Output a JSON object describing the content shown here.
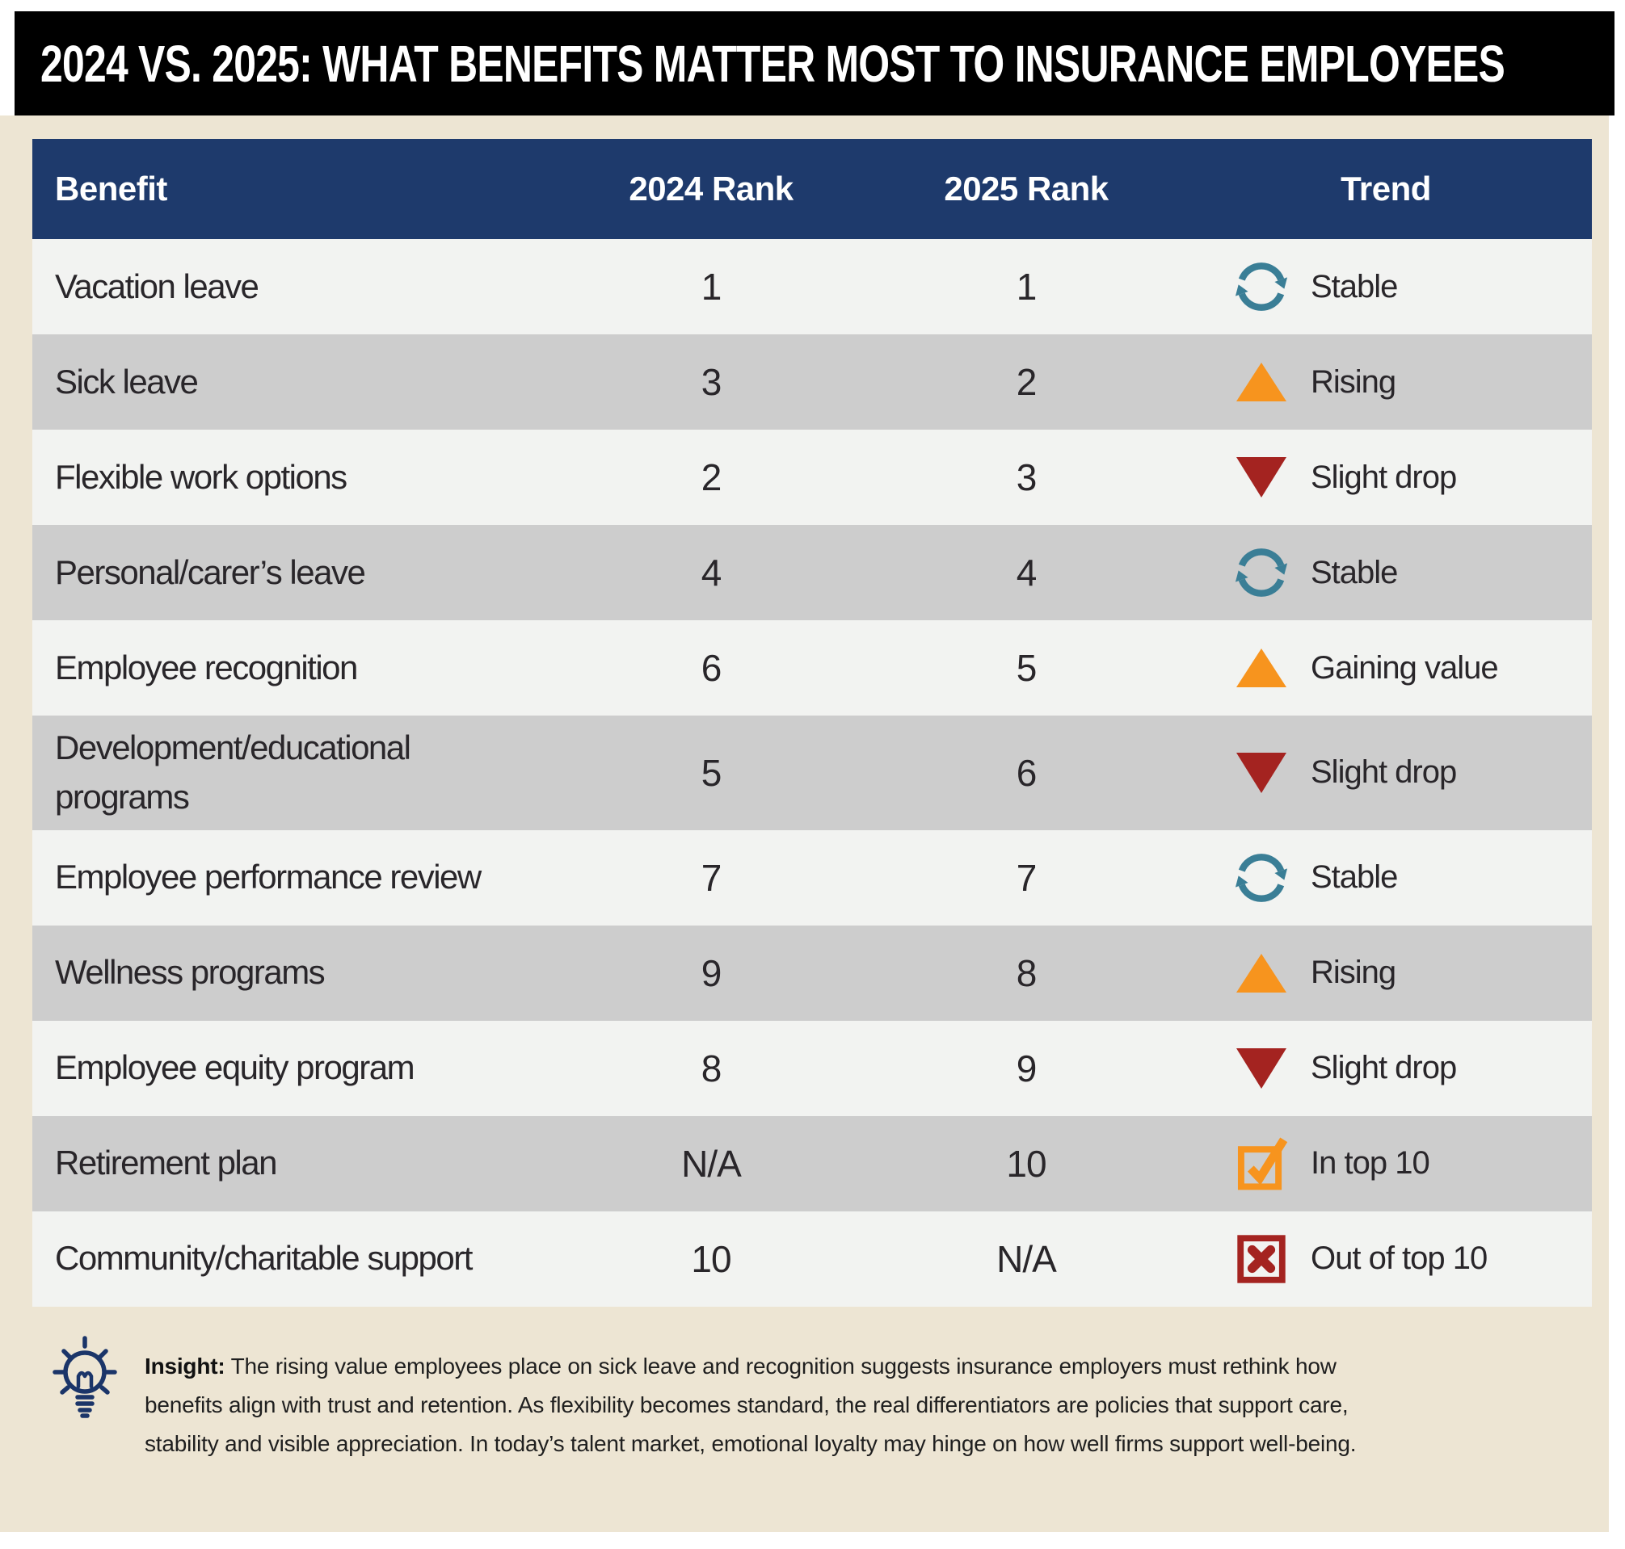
{
  "title": "2024 VS. 2025: WHAT BENEFITS MATTER MOST TO INSURANCE EMPLOYEES",
  "table": {
    "columns": [
      "Benefit",
      "2024 Rank",
      "2025 Rank",
      "Trend"
    ],
    "rows": [
      {
        "benefit": "Vacation leave",
        "rank2024": "1",
        "rank2025": "1",
        "trend": "Stable",
        "icon": "stable"
      },
      {
        "benefit": "Sick leave",
        "rank2024": "3",
        "rank2025": "2",
        "trend": "Rising",
        "icon": "up"
      },
      {
        "benefit": "Flexible work options",
        "rank2024": "2",
        "rank2025": "3",
        "trend": "Slight drop",
        "icon": "down"
      },
      {
        "benefit": "Personal/carer’s leave",
        "rank2024": "4",
        "rank2025": "4",
        "trend": "Stable",
        "icon": "stable"
      },
      {
        "benefit": "Employee recognition",
        "rank2024": "6",
        "rank2025": "5",
        "trend": "Gaining value",
        "icon": "up"
      },
      {
        "benefit": "Development/educational programs",
        "rank2024": "5",
        "rank2025": "6",
        "trend": "Slight drop",
        "icon": "down"
      },
      {
        "benefit": "Employee performance review",
        "rank2024": "7",
        "rank2025": "7",
        "trend": "Stable",
        "icon": "stable"
      },
      {
        "benefit": "Wellness programs",
        "rank2024": "9",
        "rank2025": "8",
        "trend": "Rising",
        "icon": "up"
      },
      {
        "benefit": "Employee equity program",
        "rank2024": "8",
        "rank2025": "9",
        "trend": "Slight drop",
        "icon": "down"
      },
      {
        "benefit": "Retirement plan",
        "rank2024": "N/A",
        "rank2025": "10",
        "trend": "In top 10",
        "icon": "check"
      },
      {
        "benefit": "Community/charitable support",
        "rank2024": "10",
        "rank2025": "N/A",
        "trend": "Out of top 10",
        "icon": "cross"
      }
    ]
  },
  "chart_data": {
    "type": "table",
    "title": "2024 VS. 2025: WHAT BENEFITS MATTER MOST TO INSURANCE EMPLOYEES",
    "columns": [
      "Benefit",
      "2024 Rank",
      "2025 Rank",
      "Trend"
    ],
    "series": [
      {
        "name": "Vacation leave",
        "rank_2024": 1,
        "rank_2025": 1,
        "trend": "Stable"
      },
      {
        "name": "Sick leave",
        "rank_2024": 3,
        "rank_2025": 2,
        "trend": "Rising"
      },
      {
        "name": "Flexible work options",
        "rank_2024": 2,
        "rank_2025": 3,
        "trend": "Slight drop"
      },
      {
        "name": "Personal/carer’s leave",
        "rank_2024": 4,
        "rank_2025": 4,
        "trend": "Stable"
      },
      {
        "name": "Employee recognition",
        "rank_2024": 6,
        "rank_2025": 5,
        "trend": "Gaining value"
      },
      {
        "name": "Development/educational programs",
        "rank_2024": 5,
        "rank_2025": 6,
        "trend": "Slight drop"
      },
      {
        "name": "Employee performance review",
        "rank_2024": 7,
        "rank_2025": 7,
        "trend": "Stable"
      },
      {
        "name": "Wellness programs",
        "rank_2024": 9,
        "rank_2025": 8,
        "trend": "Rising"
      },
      {
        "name": "Employee equity program",
        "rank_2024": 8,
        "rank_2025": 9,
        "trend": "Slight drop"
      },
      {
        "name": "Retirement plan",
        "rank_2024": null,
        "rank_2025": 10,
        "trend": "In top 10"
      },
      {
        "name": "Community/charitable support",
        "rank_2024": 10,
        "rank_2025": null,
        "trend": "Out of top 10"
      }
    ]
  },
  "insight": {
    "label": "Insight:",
    "text": "The rising value employees place on sick leave and recognition suggests insurance employers must rethink how benefits align with trust and retention. As flexibility becomes standard, the real differentiators are policies that support care, stability and visible appreciation. In today’s talent market, emotional loyalty may hinge on how well firms support well-being."
  },
  "icons": {
    "stable": "cycle-arrows",
    "up": "triangle-up",
    "down": "triangle-down",
    "check": "checkbox-check",
    "cross": "checkbox-x",
    "insight": "lightbulb"
  },
  "colors": {
    "page_background": "#ffffff",
    "panel_background": "#ede5d3",
    "title_bar": "#000000",
    "title_text": "#ffffff",
    "header_background": "#1e3a6c",
    "header_text": "#ffffff",
    "row_light": "#f2f3f1",
    "row_dark": "#cdcdcd",
    "body_text": "#29262a",
    "stable_icon": "#3a7e96",
    "rising_icon": "#f7941e",
    "drop_icon": "#a42320",
    "check_icon": "#f7941e",
    "cross_icon": "#a42320",
    "insight_icon": "#1b3569"
  }
}
